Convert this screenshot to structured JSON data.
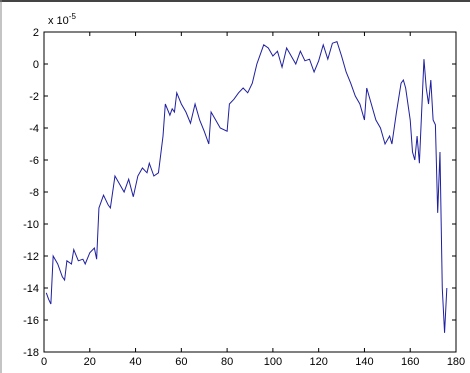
{
  "chart_data": {
    "type": "line",
    "y_multiplier": {
      "base": "x 10",
      "exponent": "-5"
    },
    "series": [
      {
        "color": "#1f1fa0",
        "x": [
          1,
          2,
          3,
          4,
          6,
          8,
          9,
          10,
          12,
          13,
          15,
          17,
          18,
          20,
          22,
          23,
          24,
          26,
          28,
          29,
          31,
          33,
          35,
          37,
          39,
          41,
          43,
          45,
          46,
          48,
          50,
          52,
          53,
          55,
          56,
          57,
          58,
          60,
          62,
          64,
          66,
          68,
          70,
          72,
          73,
          75,
          77,
          80,
          81,
          83,
          85,
          87,
          89,
          91,
          93,
          95,
          96,
          98,
          100,
          102,
          104,
          106,
          108,
          110,
          112,
          114,
          116,
          118,
          120,
          122,
          124,
          126,
          128,
          130,
          132,
          134,
          136,
          138,
          140,
          141,
          143,
          145,
          147,
          149,
          151,
          152,
          154,
          156,
          157,
          158,
          160,
          161,
          162,
          163,
          164,
          166,
          167,
          168,
          169,
          170,
          171,
          172,
          173,
          174,
          175,
          176
        ],
        "values": [
          -14.3,
          -14.7,
          -15,
          -12,
          -12.5,
          -13.3,
          -13.5,
          -12.3,
          -12.5,
          -11.6,
          -12.3,
          -12.2,
          -12.5,
          -11.8,
          -11.5,
          -12.2,
          -9,
          -8.2,
          -8.8,
          -9,
          -7,
          -7.5,
          -8,
          -7.2,
          -8.3,
          -7,
          -6.5,
          -6.8,
          -6.2,
          -7,
          -6.8,
          -4.5,
          -2.5,
          -3.2,
          -2.8,
          -3,
          -1.8,
          -2.5,
          -3,
          -3.7,
          -2.5,
          -3.5,
          -4.2,
          -5,
          -3,
          -3.5,
          -4,
          -4.2,
          -2.5,
          -2.2,
          -1.8,
          -1.5,
          -1.8,
          -1.2,
          0,
          0.8,
          1.2,
          1,
          0.5,
          0.8,
          -0.2,
          1,
          0.5,
          0,
          0.8,
          0.2,
          0.3,
          -0.5,
          0.2,
          1.2,
          0.3,
          1.3,
          1.4,
          0.5,
          -0.5,
          -1.2,
          -2,
          -2.5,
          -3.5,
          -1.5,
          -2.5,
          -3.5,
          -4,
          -5,
          -4.5,
          -5,
          -3,
          -1.2,
          -1,
          -1.5,
          -3.5,
          -5.5,
          -6,
          -4.5,
          -6.2,
          0.3,
          -1.5,
          -2.5,
          -1,
          -3.5,
          -3.8,
          -9.3,
          -5.5,
          -14,
          -16.8,
          -14
        ]
      }
    ],
    "xlim": [
      0,
      180
    ],
    "xticks": [
      0,
      20,
      40,
      60,
      80,
      100,
      120,
      140,
      160,
      180
    ],
    "ylim": [
      -18,
      2
    ],
    "yticks": [
      -18,
      -16,
      -14,
      -12,
      -10,
      -8,
      -6,
      -4,
      -2,
      0,
      2
    ]
  }
}
